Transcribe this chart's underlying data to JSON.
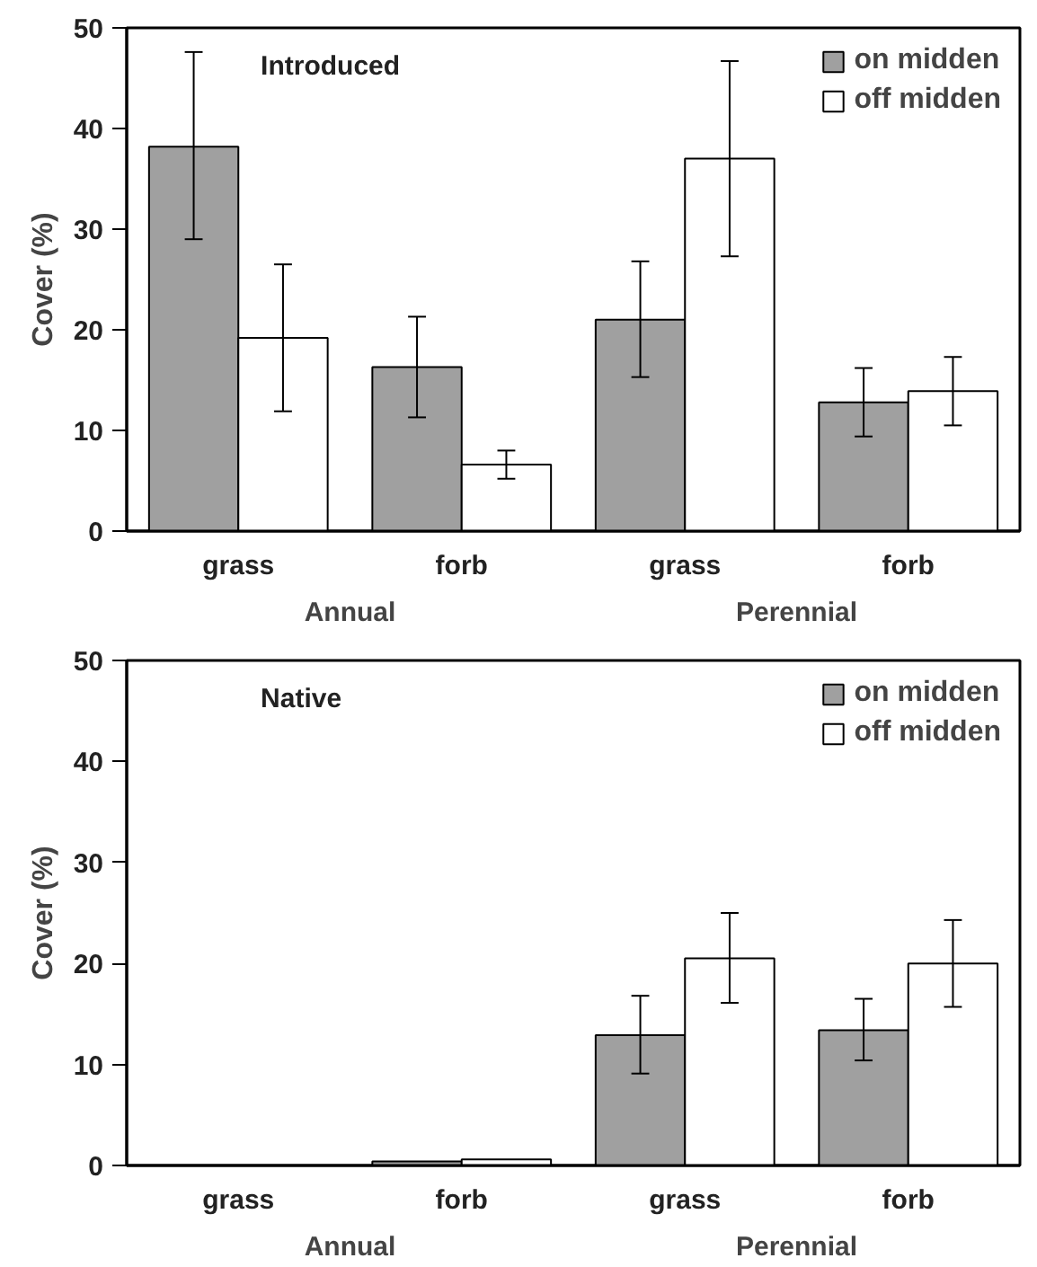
{
  "chart_data": [
    {
      "type": "bar",
      "title": "Introduced",
      "ylabel": "Cover (%)",
      "categories": [
        "grass",
        "forb",
        "grass",
        "forb"
      ],
      "annotations": [
        "Annual",
        "Perennial"
      ],
      "ylim": [
        0,
        50
      ],
      "yticks": [
        0,
        10,
        20,
        30,
        40,
        50
      ],
      "grid": false,
      "legend": "top right",
      "series": [
        {
          "name": "on midden",
          "color": "#a0a0a0",
          "values": [
            38.2,
            16.3,
            21.0,
            12.8
          ],
          "errors": [
            [
              29.0,
              47.6
            ],
            [
              11.3,
              21.3
            ],
            [
              15.3,
              26.8
            ],
            [
              9.4,
              16.2
            ]
          ]
        },
        {
          "name": "off midden",
          "color": "#ffffff",
          "values": [
            19.2,
            6.6,
            37.0,
            13.9
          ],
          "errors": [
            [
              11.9,
              26.5
            ],
            [
              5.2,
              8.0
            ],
            [
              27.3,
              46.7
            ],
            [
              10.5,
              17.3
            ]
          ]
        }
      ]
    },
    {
      "type": "bar",
      "title": "Native",
      "ylabel": "Cover (%)",
      "categories": [
        "grass",
        "forb",
        "grass",
        "forb"
      ],
      "annotations": [
        "Annual",
        "Perennial"
      ],
      "ylim": [
        0,
        50
      ],
      "yticks": [
        0,
        10,
        20,
        30,
        40,
        50
      ],
      "grid": false,
      "legend": "top right",
      "series": [
        {
          "name": "on midden",
          "color": "#a0a0a0",
          "values": [
            null,
            0.4,
            12.9,
            13.4
          ],
          "errors": [
            null,
            null,
            [
              9.1,
              16.8
            ],
            [
              10.4,
              16.5
            ]
          ]
        },
        {
          "name": "off midden",
          "color": "#ffffff",
          "values": [
            null,
            0.6,
            20.5,
            20.0
          ],
          "errors": [
            null,
            null,
            [
              16.1,
              25.0
            ],
            [
              15.7,
              24.3
            ]
          ]
        }
      ]
    }
  ]
}
